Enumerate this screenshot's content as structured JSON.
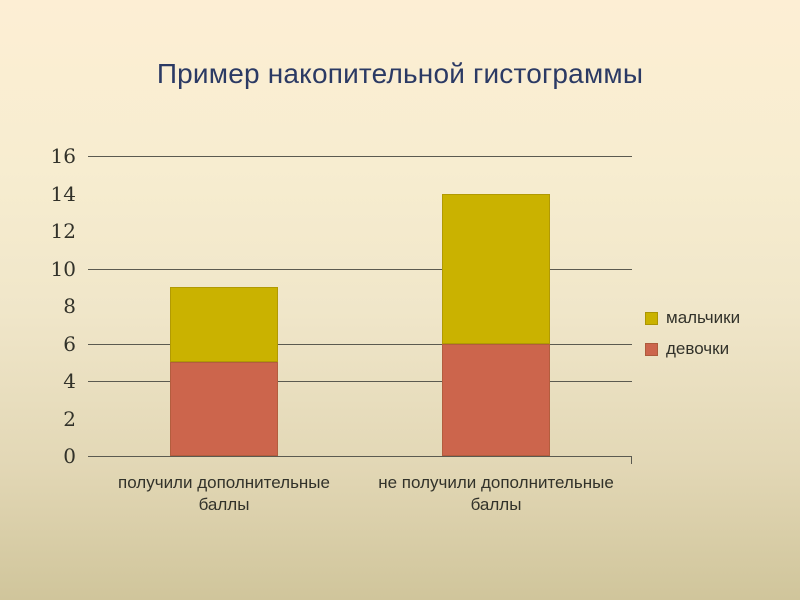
{
  "slide": {
    "background_top": "#fdeed4",
    "background_bottom": "#d0c59b"
  },
  "chart_data": {
    "type": "bar",
    "stacked": true,
    "title": "Пример накопительной гистограммы",
    "title_color": "#2b3a64",
    "categories": [
      "получили дополнительные баллы",
      "не получили дополнительные баллы"
    ],
    "category_label_lines": [
      [
        "получили дополнительные",
        "баллы"
      ],
      [
        "не получили дополнительные",
        "баллы"
      ]
    ],
    "series": [
      {
        "name": "девочки",
        "color": "#cc654c",
        "values": [
          5,
          6
        ]
      },
      {
        "name": "мальчики",
        "color": "#cab200",
        "values": [
          4,
          8
        ]
      }
    ],
    "stack_order_bottom_to_top": [
      "девочки",
      "мальчики"
    ],
    "totals": [
      9,
      14
    ],
    "legend_order": [
      "мальчики",
      "девочки"
    ],
    "legend_position": "right",
    "ylim": [
      0,
      16
    ],
    "yticks": [
      0,
      2,
      4,
      6,
      8,
      10,
      12,
      14,
      16
    ],
    "visible_gridlines": [
      4,
      6,
      10,
      16
    ],
    "grid_on": true,
    "grid_color": "#5b5a50",
    "axis_color": "#5b5a50",
    "tick_label_color": "#32322a",
    "xlabel": "",
    "ylabel": ""
  }
}
